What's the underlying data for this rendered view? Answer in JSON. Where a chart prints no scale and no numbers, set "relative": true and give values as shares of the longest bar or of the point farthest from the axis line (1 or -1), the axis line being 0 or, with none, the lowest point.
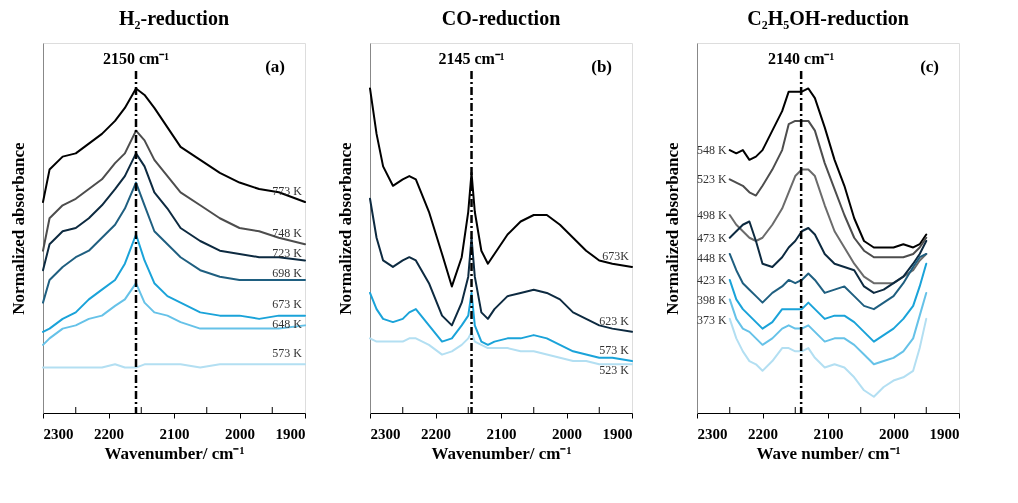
{
  "chart_data": [
    {
      "type": "line",
      "title": "H₂-reduction",
      "xlabel": "Wavenumber/ cm⁻¹",
      "ylabel": "Normalized absorbance",
      "relative": true,
      "grid": false,
      "xlim": [
        2300,
        1900
      ],
      "xticks": [
        2300,
        {
          "value": 2250,
          "label": null
        },
        2200,
        {
          "value": 2150,
          "label": null
        },
        2100,
        {
          "value": 2050,
          "label": null
        },
        2000,
        {
          "value": 1950,
          "label": null
        },
        1900
      ],
      "x": [
        2300,
        2290,
        2270,
        2250,
        2230,
        2210,
        2190,
        2175,
        2158,
        2145,
        2130,
        2110,
        2090,
        2060,
        2030,
        2000,
        1970,
        1940,
        1900
      ],
      "series": [
        {
          "name": "773 K",
          "color": "#000000",
          "values": [
            0.65,
            0.75,
            0.79,
            0.8,
            0.83,
            0.86,
            0.9,
            0.94,
            1.0,
            0.98,
            0.94,
            0.88,
            0.82,
            0.78,
            0.74,
            0.71,
            0.69,
            0.68,
            0.65
          ]
        },
        {
          "name": "748 K",
          "color": "#4d4d4d",
          "values": [
            0.5,
            0.6,
            0.64,
            0.66,
            0.69,
            0.72,
            0.77,
            0.8,
            0.87,
            0.84,
            0.78,
            0.73,
            0.68,
            0.64,
            0.6,
            0.57,
            0.56,
            0.54,
            0.52
          ]
        },
        {
          "name": "723 K",
          "color": "#0d2a40",
          "values": [
            0.44,
            0.52,
            0.56,
            0.57,
            0.6,
            0.64,
            0.69,
            0.73,
            0.8,
            0.76,
            0.68,
            0.63,
            0.57,
            0.53,
            0.5,
            0.49,
            0.48,
            0.48,
            0.47
          ]
        },
        {
          "name": "698 K",
          "color": "#1f5f80",
          "values": [
            0.34,
            0.41,
            0.45,
            0.48,
            0.5,
            0.54,
            0.58,
            0.63,
            0.71,
            0.64,
            0.56,
            0.52,
            0.48,
            0.44,
            0.42,
            0.41,
            0.41,
            0.41,
            0.41
          ]
        },
        {
          "name": "673 K",
          "color": "#1aa3d9",
          "values": [
            0.25,
            0.26,
            0.29,
            0.31,
            0.35,
            0.38,
            0.41,
            0.46,
            0.55,
            0.47,
            0.4,
            0.36,
            0.34,
            0.31,
            0.3,
            0.3,
            0.29,
            0.3,
            0.3
          ]
        },
        {
          "name": "648 K",
          "color": "#66c2e8",
          "values": [
            0.21,
            0.23,
            0.26,
            0.27,
            0.29,
            0.3,
            0.33,
            0.35,
            0.4,
            0.34,
            0.31,
            0.3,
            0.28,
            0.26,
            0.26,
            0.26,
            0.26,
            0.26,
            0.27
          ]
        },
        {
          "name": "573 K",
          "color": "#b3dff2",
          "values": [
            0.14,
            0.14,
            0.14,
            0.14,
            0.14,
            0.14,
            0.15,
            0.14,
            0.14,
            0.15,
            0.15,
            0.15,
            0.15,
            0.14,
            0.15,
            0.15,
            0.15,
            0.15,
            0.15
          ]
        }
      ],
      "ref_lines": [
        {
          "axis": "x",
          "value": 2158,
          "label": "2150 cm⁻¹",
          "color": "#000000",
          "line_style": "dashed"
        }
      ],
      "annotations": [
        "(a)"
      ]
    },
    {
      "type": "line",
      "title": "CO-reduction",
      "xlabel": "Wavenumber/ cm⁻¹",
      "ylabel": "Normalized absorbance",
      "relative": true,
      "grid": false,
      "xlim": [
        2300,
        1900
      ],
      "xticks": [
        2300,
        {
          "value": 2250,
          "label": null
        },
        2200,
        {
          "value": 2150,
          "label": null
        },
        2100,
        {
          "value": 2050,
          "label": null
        },
        2000,
        {
          "value": 1950,
          "label": null
        },
        1900
      ],
      "x": [
        2300,
        2290,
        2280,
        2265,
        2250,
        2240,
        2230,
        2210,
        2190,
        2175,
        2160,
        2150,
        2145,
        2140,
        2130,
        2120,
        2110,
        2090,
        2070,
        2050,
        2030,
        2010,
        1990,
        1970,
        1950,
        1930,
        1900
      ],
      "series": [
        {
          "name": "673K",
          "color": "#000000",
          "values": [
            1.0,
            0.86,
            0.76,
            0.7,
            0.72,
            0.73,
            0.72,
            0.62,
            0.49,
            0.39,
            0.48,
            0.62,
            0.74,
            0.62,
            0.5,
            0.46,
            0.49,
            0.55,
            0.59,
            0.61,
            0.61,
            0.58,
            0.54,
            0.5,
            0.47,
            0.46,
            0.45
          ]
        },
        {
          "name": "623 K",
          "color": "#0d2a40",
          "values": [
            0.66,
            0.54,
            0.47,
            0.45,
            0.47,
            0.48,
            0.47,
            0.4,
            0.3,
            0.27,
            0.34,
            0.42,
            0.54,
            0.42,
            0.31,
            0.29,
            0.32,
            0.36,
            0.37,
            0.38,
            0.37,
            0.35,
            0.31,
            0.29,
            0.27,
            0.26,
            0.25
          ]
        },
        {
          "name": "573 K",
          "color": "#1aa3d9",
          "values": [
            0.37,
            0.32,
            0.29,
            0.28,
            0.29,
            0.31,
            0.32,
            0.27,
            0.22,
            0.23,
            0.27,
            0.3,
            0.37,
            0.27,
            0.22,
            0.21,
            0.22,
            0.23,
            0.23,
            0.24,
            0.23,
            0.21,
            0.19,
            0.18,
            0.17,
            0.17,
            0.16
          ]
        },
        {
          "name": "523 K",
          "color": "#b3dff2",
          "values": [
            0.23,
            0.22,
            0.22,
            0.22,
            0.22,
            0.23,
            0.23,
            0.21,
            0.18,
            0.19,
            0.21,
            0.23,
            0.25,
            0.22,
            0.21,
            0.2,
            0.2,
            0.2,
            0.19,
            0.19,
            0.18,
            0.17,
            0.16,
            0.16,
            0.15,
            0.15,
            0.15
          ]
        }
      ],
      "ref_lines": [
        {
          "axis": "x",
          "value": 2145,
          "label": "2145 cm⁻¹",
          "color": "#000000",
          "line_style": "dashed"
        }
      ],
      "annotations": [
        "(b)"
      ]
    },
    {
      "type": "line",
      "title": "C₂H₅OH-reduction",
      "xlabel": "Wave number/ cm⁻¹",
      "ylabel": "Normalized absorbance",
      "relative": true,
      "grid": false,
      "xlim": [
        2300,
        1900
      ],
      "xticks": [
        2300,
        {
          "value": 2250,
          "label": null
        },
        2200,
        {
          "value": 2150,
          "label": null
        },
        2100,
        {
          "value": 2050,
          "label": null
        },
        2000,
        {
          "value": 1950,
          "label": null
        },
        1900
      ],
      "x": [
        1950,
        1960,
        1970,
        1985,
        2000,
        2015,
        2030,
        2045,
        2060,
        2075,
        2090,
        2105,
        2120,
        2130,
        2140,
        2150,
        2160,
        2170,
        2185,
        2200,
        2210,
        2220,
        2230,
        2240,
        2250
      ],
      "series": [
        {
          "name": "548 K",
          "color": "#000000",
          "values": [
            0.55,
            0.52,
            0.51,
            0.52,
            0.51,
            0.51,
            0.51,
            0.53,
            0.6,
            0.7,
            0.78,
            0.88,
            0.97,
            1.0,
            0.99,
            0.99,
            0.99,
            0.93,
            0.87,
            0.81,
            0.79,
            0.78,
            0.81,
            0.8,
            0.81
          ]
        },
        {
          "name": "523 K",
          "color": "#4d4d4d",
          "values": [
            0.54,
            0.51,
            0.49,
            0.48,
            0.48,
            0.48,
            0.48,
            0.5,
            0.54,
            0.61,
            0.69,
            0.77,
            0.87,
            0.9,
            0.9,
            0.9,
            0.89,
            0.81,
            0.75,
            0.7,
            0.67,
            0.68,
            0.7,
            0.71,
            0.72
          ]
        },
        {
          "name": "498 K",
          "color": "#6b6b6b",
          "values": [
            0.49,
            0.47,
            0.44,
            0.42,
            0.4,
            0.4,
            0.4,
            0.42,
            0.46,
            0.51,
            0.56,
            0.64,
            0.73,
            0.75,
            0.75,
            0.73,
            0.68,
            0.63,
            0.58,
            0.54,
            0.53,
            0.54,
            0.56,
            0.58,
            0.61
          ]
        },
        {
          "name": "473 K",
          "color": "#0d2a40",
          "values": [
            0.53,
            0.49,
            0.46,
            0.42,
            0.4,
            0.38,
            0.37,
            0.39,
            0.44,
            0.45,
            0.46,
            0.49,
            0.55,
            0.57,
            0.56,
            0.53,
            0.51,
            0.48,
            0.45,
            0.46,
            0.53,
            0.59,
            0.58,
            0.56,
            0.54
          ]
        },
        {
          "name": "448 K",
          "color": "#1f5f80",
          "values": [
            0.49,
            0.48,
            0.45,
            0.4,
            0.36,
            0.34,
            0.32,
            0.33,
            0.36,
            0.39,
            0.38,
            0.37,
            0.41,
            0.43,
            0.41,
            0.4,
            0.41,
            0.39,
            0.37,
            0.34,
            0.36,
            0.38,
            0.4,
            0.44,
            0.49
          ]
        },
        {
          "name": "423 K",
          "color": "#1aa3d9",
          "values": [
            0.46,
            0.39,
            0.33,
            0.29,
            0.26,
            0.24,
            0.22,
            0.25,
            0.28,
            0.3,
            0.3,
            0.29,
            0.32,
            0.34,
            0.32,
            0.32,
            0.32,
            0.32,
            0.28,
            0.26,
            0.28,
            0.3,
            0.32,
            0.35,
            0.41
          ]
        },
        {
          "name": "398 K",
          "color": "#66c2e8",
          "values": [
            0.37,
            0.3,
            0.23,
            0.19,
            0.17,
            0.16,
            0.15,
            0.18,
            0.21,
            0.23,
            0.23,
            0.22,
            0.25,
            0.27,
            0.26,
            0.26,
            0.27,
            0.26,
            0.23,
            0.21,
            0.23,
            0.25,
            0.26,
            0.29,
            0.35
          ]
        },
        {
          "name": "373 K",
          "color": "#b3dff2",
          "values": [
            0.29,
            0.2,
            0.13,
            0.11,
            0.1,
            0.08,
            0.05,
            0.07,
            0.11,
            0.14,
            0.15,
            0.14,
            0.17,
            0.2,
            0.19,
            0.19,
            0.2,
            0.2,
            0.16,
            0.13,
            0.15,
            0.16,
            0.19,
            0.23,
            0.29
          ]
        }
      ],
      "ref_lines": [
        {
          "axis": "x",
          "value": 2141,
          "label": "2140 cm⁻¹",
          "color": "#000000",
          "line_style": "dashed"
        }
      ],
      "annotations": [
        "(c)"
      ]
    }
  ]
}
